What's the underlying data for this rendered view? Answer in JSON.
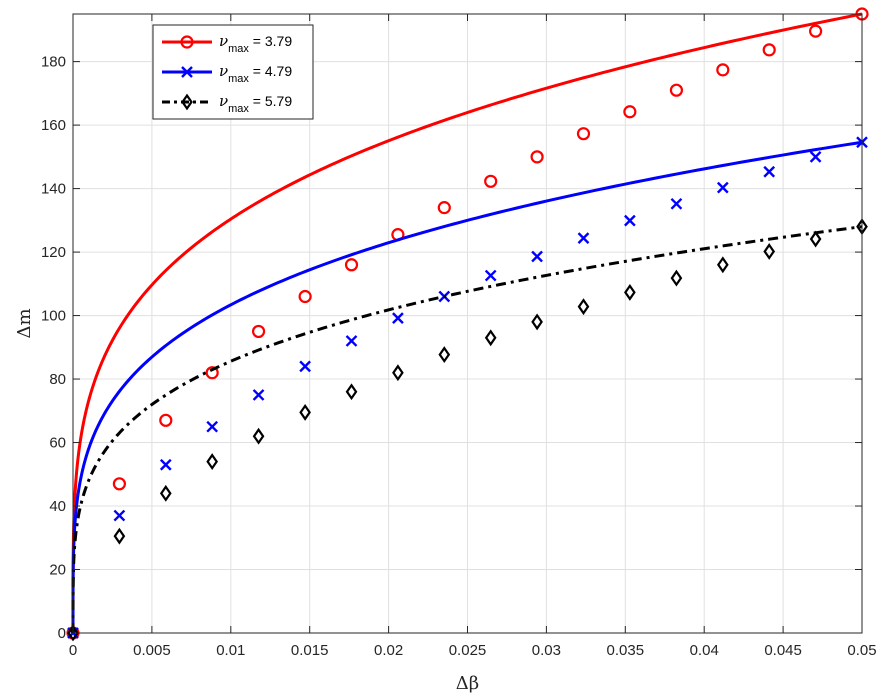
{
  "chart_data": {
    "type": "line",
    "xlabel": "Δβ",
    "ylabel": "Δm",
    "xlim": [
      0,
      0.05
    ],
    "ylim": [
      0,
      195
    ],
    "grid": true,
    "legend_position": "top-left",
    "xticks": [
      0,
      0.005,
      0.01,
      0.015,
      0.02,
      0.025,
      0.03,
      0.035,
      0.04,
      0.045,
      0.05
    ],
    "xtick_labels": [
      "0",
      "0.005",
      "0.01",
      "0.015",
      "0.02",
      "0.025",
      "0.03",
      "0.035",
      "0.04",
      "0.045",
      "0.05"
    ],
    "yticks": [
      0,
      20,
      40,
      60,
      80,
      100,
      120,
      140,
      160,
      180
    ],
    "ytick_labels": [
      "0",
      "20",
      "40",
      "60",
      "80",
      "100",
      "120",
      "140",
      "160",
      "180"
    ],
    "series": [
      {
        "legend_symbol": "ν",
        "legend_sub": "max",
        "legend_value": " = 3.79",
        "color": "#ff0000",
        "linestyle": "solid",
        "marker": "circle",
        "x": [
          0,
          0.00294,
          0.00588,
          0.00882,
          0.01176,
          0.01471,
          0.01765,
          0.02059,
          0.02353,
          0.02647,
          0.02941,
          0.03235,
          0.03529,
          0.03824,
          0.04118,
          0.04412,
          0.04706,
          0.05
        ],
        "y": [
          0,
          47,
          67,
          82,
          95,
          106,
          116,
          125.5,
          134,
          142.3,
          150,
          157.3,
          164.2,
          171,
          177.4,
          183.7,
          189.6,
          195
        ]
      },
      {
        "legend_symbol": "ν",
        "legend_sub": "max",
        "legend_value": " = 4.79",
        "color": "#0000ff",
        "linestyle": "solid",
        "marker": "x",
        "x": [
          0,
          0.00294,
          0.00588,
          0.00882,
          0.01176,
          0.01471,
          0.01765,
          0.02059,
          0.02353,
          0.02647,
          0.02941,
          0.03235,
          0.03529,
          0.03824,
          0.04118,
          0.04412,
          0.04706,
          0.05
        ],
        "y": [
          0,
          37,
          53,
          65,
          75,
          84,
          92,
          99.2,
          106,
          112.6,
          118.6,
          124.4,
          129.9,
          135.2,
          140.3,
          145.3,
          150,
          154.6
        ]
      },
      {
        "legend_symbol": "ν",
        "legend_sub": "max",
        "legend_value": " = 5.79",
        "color": "#000000",
        "linestyle": "dashdot",
        "marker": "diamond",
        "x": [
          0,
          0.00294,
          0.00588,
          0.00882,
          0.01176,
          0.01471,
          0.01765,
          0.02059,
          0.02353,
          0.02647,
          0.02941,
          0.03235,
          0.03529,
          0.03824,
          0.04118,
          0.04412,
          0.04706,
          0.05
        ],
        "y": [
          0,
          30.5,
          44,
          54,
          62,
          69.5,
          76,
          82,
          87.7,
          93,
          98,
          102.8,
          107.3,
          111.8,
          116,
          120.2,
          124.1,
          128
        ]
      }
    ]
  }
}
